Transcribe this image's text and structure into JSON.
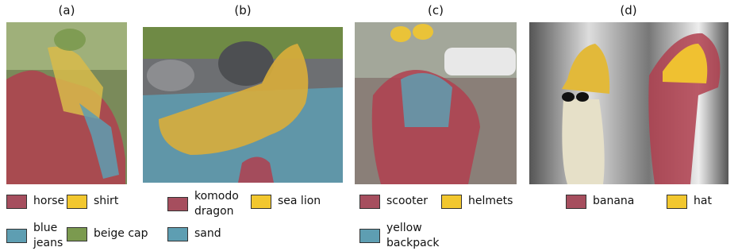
{
  "panels": [
    {
      "label": "(a)",
      "legend": [
        {
          "text": "horse",
          "color": "#a64e5e"
        },
        {
          "text": "shirt",
          "color": "#f2c72e"
        },
        {
          "text": "blue jeans",
          "color": "#5e9eb2"
        },
        {
          "text": "beige cap",
          "color": "#7b9a4f"
        }
      ]
    },
    {
      "label": "(b)",
      "legend": [
        {
          "text": "komodo dragon",
          "color": "#a64e5e"
        },
        {
          "text": "sea lion",
          "color": "#f2c72e"
        },
        {
          "text": "sand",
          "color": "#5e9eb2"
        }
      ]
    },
    {
      "label": "(c)",
      "legend": [
        {
          "text": "scooter",
          "color": "#a64e5e"
        },
        {
          "text": "helmets",
          "color": "#f2c72e"
        },
        {
          "text": "yellow backpack",
          "color": "#5e9eb2"
        }
      ]
    },
    {
      "label": "(d)",
      "legend": [
        {
          "text": "banana",
          "color": "#a64e5e"
        },
        {
          "text": "hat",
          "color": "#f2c72e"
        }
      ]
    }
  ]
}
